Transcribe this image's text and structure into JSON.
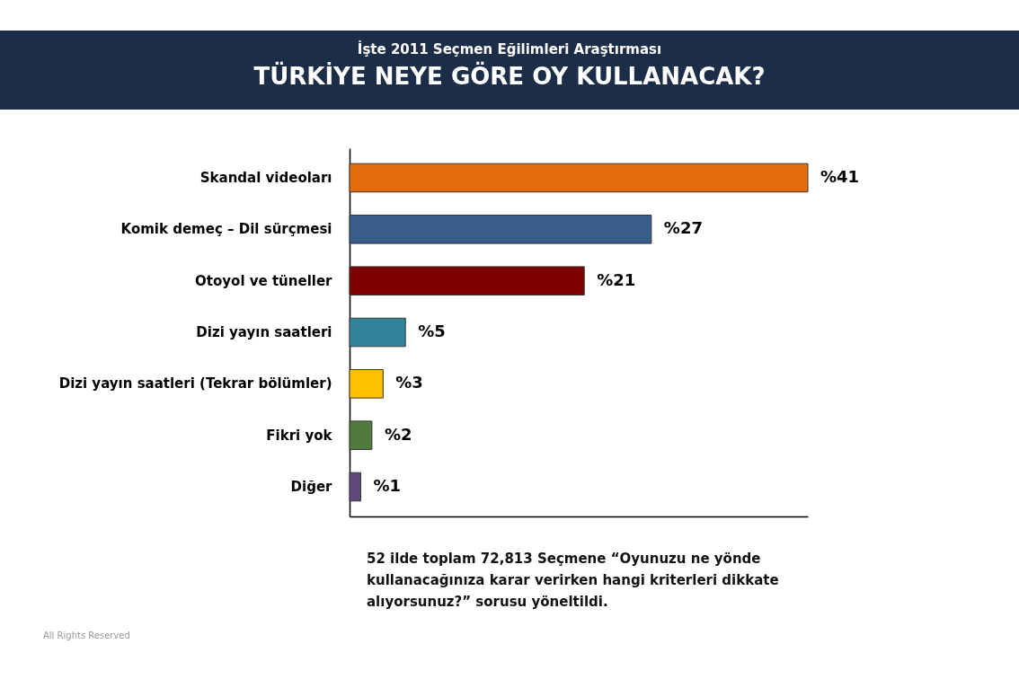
{
  "chart_data": {
    "type": "bar",
    "orientation": "horizontal",
    "title": "İşte 2011 Seçmen Eğilimleri Araştırması",
    "subtitle": "TÜRKİYE NEYE GÖRE OY KULLANACAK?",
    "categories": [
      "Skandal videoları",
      "Komik demeç – Dil sürçmesi",
      "Otoyol ve tüneller",
      "Dizi yayın saatleri",
      "Dizi yayın saatleri (Tekrar bölümler)",
      "Fikri yok",
      "Diğer"
    ],
    "values": [
      41,
      27,
      21,
      5,
      3,
      2,
      1
    ],
    "colors": [
      "#e46c0a",
      "#385d8a",
      "#7f0000",
      "#31849b",
      "#ffc000",
      "#4f7a3e",
      "#5f497a"
    ],
    "value_labels": [
      "%41",
      "%27",
      "%21",
      "%5",
      "%3",
      "%2",
      "%1"
    ],
    "grid": false,
    "annotations": [
      "52 ilde toplam 72,813 Seçmene “Oyunuzu ne yönde kullanacağınıza karar verirken hangi kriterleri dikkate alıyorsunuz?” sorusu yöneltildi.",
      "All Rights Reserved"
    ]
  }
}
